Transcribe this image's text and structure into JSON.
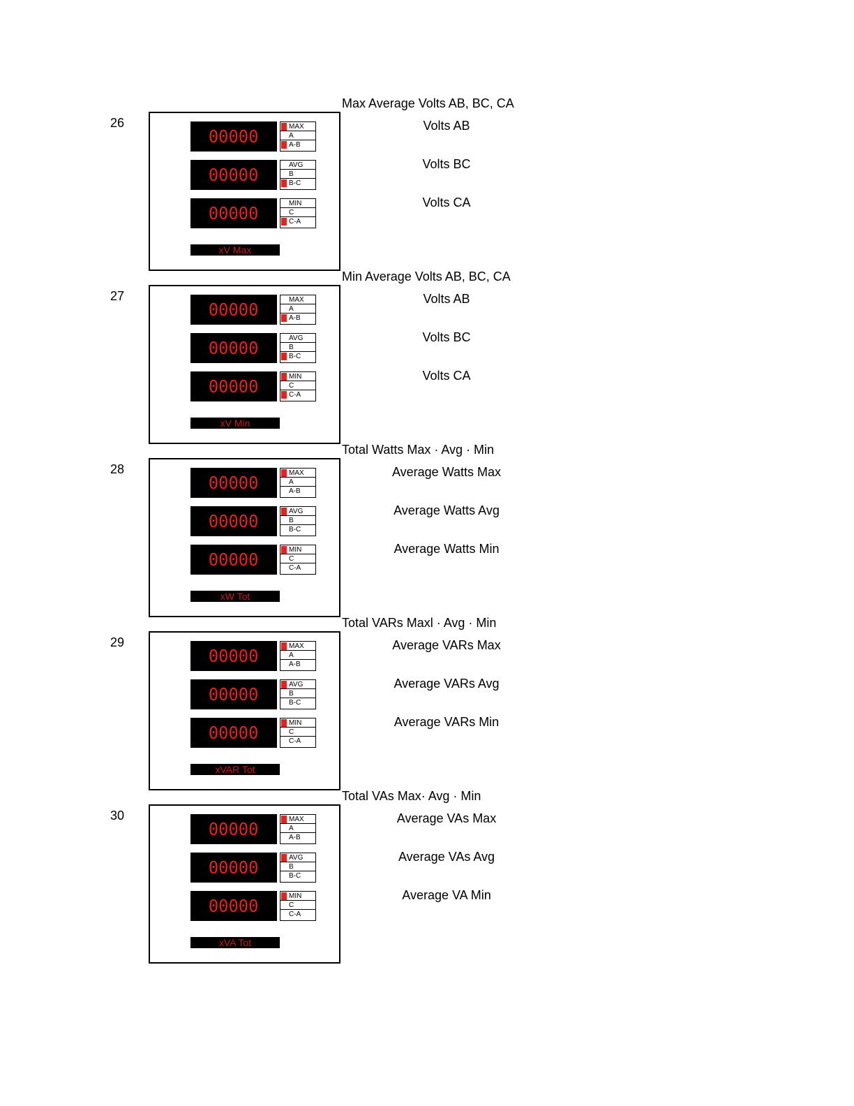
{
  "sections": [
    {
      "number": "26",
      "title": "Max Average Volts AB, BC, CA",
      "mode_label": "xV Max",
      "descriptions": [
        "Volts AB",
        "Volts BC",
        "Volts CA"
      ],
      "rows": [
        {
          "display": "00000",
          "labels": [
            "MAX",
            "A",
            "A-B"
          ],
          "lit": [
            true,
            false,
            true
          ]
        },
        {
          "display": "00000",
          "labels": [
            "AVG",
            "B",
            "B-C"
          ],
          "lit": [
            false,
            false,
            true
          ]
        },
        {
          "display": "00000",
          "labels": [
            "MIN",
            "C",
            "C-A"
          ],
          "lit": [
            false,
            false,
            true
          ]
        }
      ]
    },
    {
      "number": "27",
      "title": "Min Average Volts AB, BC, CA",
      "mode_label": "xV Min",
      "descriptions": [
        "Volts AB",
        "Volts BC",
        "Volts CA"
      ],
      "rows": [
        {
          "display": "00000",
          "labels": [
            "MAX",
            "A",
            "A-B"
          ],
          "lit": [
            false,
            false,
            true
          ]
        },
        {
          "display": "00000",
          "labels": [
            "AVG",
            "B",
            "B-C"
          ],
          "lit": [
            false,
            false,
            true
          ]
        },
        {
          "display": "00000",
          "labels": [
            "MIN",
            "C",
            "C-A"
          ],
          "lit": [
            true,
            false,
            true
          ]
        }
      ]
    },
    {
      "number": "28",
      "title": "Total Watts Max · Avg · Min",
      "mode_label": "xW Tot",
      "descriptions": [
        "Average Watts Max",
        "Average Watts Avg",
        "Average Watts Min"
      ],
      "rows": [
        {
          "display": "00000",
          "labels": [
            "MAX",
            "A",
            "A-B"
          ],
          "lit": [
            true,
            false,
            false
          ]
        },
        {
          "display": "00000",
          "labels": [
            "AVG",
            "B",
            "B-C"
          ],
          "lit": [
            true,
            false,
            false
          ]
        },
        {
          "display": "00000",
          "labels": [
            "MIN",
            "C",
            "C-A"
          ],
          "lit": [
            true,
            false,
            false
          ]
        }
      ]
    },
    {
      "number": "29",
      "title": "Total VARs Maxl · Avg · Min",
      "mode_label": "xVAR Tot",
      "descriptions": [
        "Average VARs Max",
        "Average VARs Avg",
        "Average VARs Min"
      ],
      "rows": [
        {
          "display": "00000",
          "labels": [
            "MAX",
            "A",
            "A-B"
          ],
          "lit": [
            true,
            false,
            false
          ]
        },
        {
          "display": "00000",
          "labels": [
            "AVG",
            "B",
            "B-C"
          ],
          "lit": [
            true,
            false,
            false
          ]
        },
        {
          "display": "00000",
          "labels": [
            "MIN",
            "C",
            "C-A"
          ],
          "lit": [
            true,
            false,
            false
          ]
        }
      ]
    },
    {
      "number": "30",
      "title": "Total VAs Max· Avg · Min",
      "mode_label": "xVA Tot",
      "descriptions": [
        "Average VAs Max",
        "Average VAs Avg",
        "Average VA Min"
      ],
      "rows": [
        {
          "display": "00000",
          "labels": [
            "MAX",
            "A",
            "A-B"
          ],
          "lit": [
            true,
            false,
            false
          ]
        },
        {
          "display": "00000",
          "labels": [
            "AVG",
            "B",
            "B-C"
          ],
          "lit": [
            true,
            false,
            false
          ]
        },
        {
          "display": "00000",
          "labels": [
            "MIN",
            "C",
            "C-A"
          ],
          "lit": [
            true,
            false,
            false
          ]
        }
      ]
    }
  ]
}
